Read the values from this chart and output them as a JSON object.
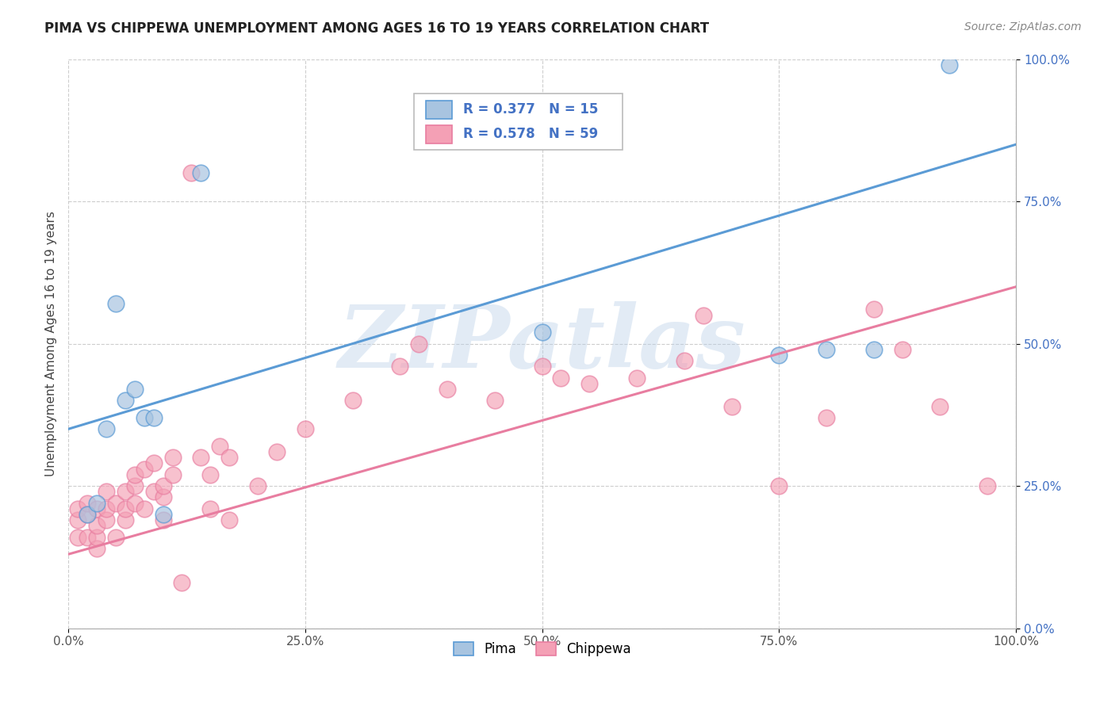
{
  "title": "PIMA VS CHIPPEWA UNEMPLOYMENT AMONG AGES 16 TO 19 YEARS CORRELATION CHART",
  "source": "Source: ZipAtlas.com",
  "ylabel": "Unemployment Among Ages 16 to 19 years",
  "xlim": [
    0,
    1
  ],
  "ylim": [
    0,
    1
  ],
  "xticks": [
    0.0,
    0.25,
    0.5,
    0.75,
    1.0
  ],
  "xtick_labels": [
    "0.0%",
    "25.0%",
    "50.0%",
    "75.0%",
    "100.0%"
  ],
  "yticks": [
    0.0,
    0.25,
    0.5,
    0.75,
    1.0
  ],
  "ytick_labels": [
    "0.0%",
    "25.0%",
    "50.0%",
    "75.0%",
    "100.0%"
  ],
  "pima_color": "#a8c4e0",
  "chippewa_color": "#f4a0b5",
  "pima_line_color": "#5b9bd5",
  "chippewa_line_color": "#e87da0",
  "R_pima": 0.377,
  "N_pima": 15,
  "R_chippewa": 0.578,
  "N_chippewa": 59,
  "legend_text_color": "#4472c4",
  "watermark": "ZIPatlas",
  "background_color": "#ffffff",
  "grid_color": "#c8c8c8",
  "blue_line_x0": 0.0,
  "blue_line_y0": 0.35,
  "blue_line_x1": 1.0,
  "blue_line_y1": 0.85,
  "pink_line_x0": 0.0,
  "pink_line_y0": 0.13,
  "pink_line_x1": 1.0,
  "pink_line_y1": 0.6,
  "pima_x": [
    0.02,
    0.03,
    0.04,
    0.05,
    0.06,
    0.07,
    0.08,
    0.09,
    0.1,
    0.14,
    0.5,
    0.75,
    0.8,
    0.85,
    0.93
  ],
  "pima_y": [
    0.2,
    0.22,
    0.35,
    0.57,
    0.4,
    0.42,
    0.37,
    0.37,
    0.2,
    0.8,
    0.52,
    0.48,
    0.49,
    0.49,
    0.99
  ],
  "chippewa_x": [
    0.01,
    0.01,
    0.01,
    0.02,
    0.02,
    0.02,
    0.03,
    0.03,
    0.03,
    0.03,
    0.04,
    0.04,
    0.04,
    0.05,
    0.05,
    0.06,
    0.06,
    0.06,
    0.07,
    0.07,
    0.07,
    0.08,
    0.08,
    0.09,
    0.09,
    0.1,
    0.1,
    0.1,
    0.11,
    0.11,
    0.12,
    0.13,
    0.14,
    0.15,
    0.15,
    0.16,
    0.17,
    0.17,
    0.2,
    0.22,
    0.25,
    0.3,
    0.35,
    0.37,
    0.4,
    0.45,
    0.5,
    0.52,
    0.55,
    0.6,
    0.65,
    0.67,
    0.7,
    0.75,
    0.8,
    0.85,
    0.88,
    0.92,
    0.97
  ],
  "chippewa_y": [
    0.16,
    0.19,
    0.21,
    0.16,
    0.2,
    0.22,
    0.14,
    0.16,
    0.18,
    0.21,
    0.19,
    0.21,
    0.24,
    0.16,
    0.22,
    0.19,
    0.21,
    0.24,
    0.22,
    0.25,
    0.27,
    0.21,
    0.28,
    0.24,
    0.29,
    0.19,
    0.23,
    0.25,
    0.27,
    0.3,
    0.08,
    0.8,
    0.3,
    0.21,
    0.27,
    0.32,
    0.19,
    0.3,
    0.25,
    0.31,
    0.35,
    0.4,
    0.46,
    0.5,
    0.42,
    0.4,
    0.46,
    0.44,
    0.43,
    0.44,
    0.47,
    0.55,
    0.39,
    0.25,
    0.37,
    0.56,
    0.49,
    0.39,
    0.25
  ]
}
